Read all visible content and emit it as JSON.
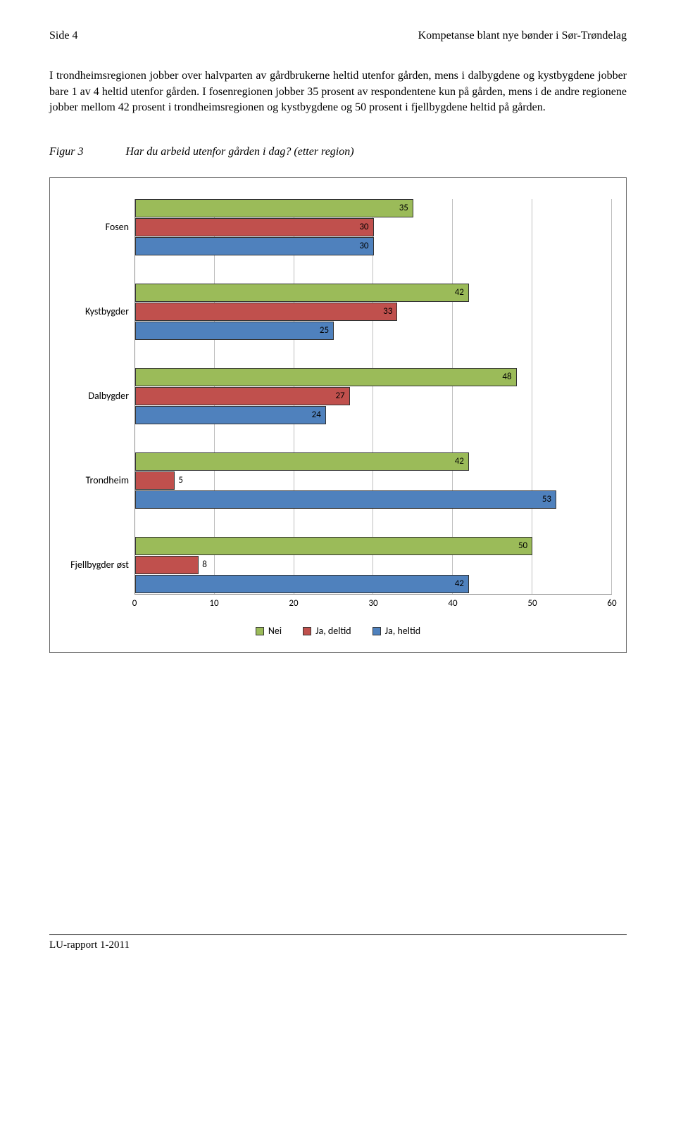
{
  "header": {
    "left": "Side 4",
    "right": "Kompetanse blant nye bønder i Sør-Trøndelag"
  },
  "body_text": "I trondheimsregionen jobber over halvparten av gårdbrukerne heltid utenfor gården, mens i dalbygdene og kystbygdene jobber bare 1 av 4 heltid utenfor gården. I fosenregionen jobber 35 prosent av respondentene kun på gården, mens i de andre regionene jobber mellom 42 prosent i trondheimsregionen og kystbygdene og 50 prosent i fjellbygdene heltid på gården.",
  "figure": {
    "label": "Figur 3",
    "title": "Har du arbeid utenfor gården i dag? (etter region)"
  },
  "chart": {
    "type": "bar-horizontal-grouped",
    "x_max": 60,
    "x_ticks": [
      0,
      10,
      20,
      30,
      40,
      50,
      60
    ],
    "grid_color": "#bfbfbf",
    "axis_color": "#888888",
    "background_color": "#ffffff",
    "bar_border_color": "#333333",
    "categories": [
      "Fosen",
      "Kystbygder",
      "Dalbygder",
      "Trondheim",
      "Fjellbygder øst"
    ],
    "series": [
      {
        "name": "Nei",
        "color": "#9bbb59"
      },
      {
        "name": "Ja, deltid",
        "color": "#c0504d"
      },
      {
        "name": "Ja, heltid",
        "color": "#4f81bd"
      }
    ],
    "data": {
      "Fosen": {
        "Nei": 35,
        "Ja, deltid": 30,
        "Ja, heltid": 30
      },
      "Kystbygder": {
        "Nei": 42,
        "Ja, deltid": 33,
        "Ja, heltid": 25
      },
      "Dalbygder": {
        "Nei": 48,
        "Ja, deltid": 27,
        "Ja, heltid": 24
      },
      "Trondheim": {
        "Nei": 42,
        "Ja, deltid": 5,
        "Ja, heltid": 53
      },
      "Fjellbygder øst": {
        "Nei": 50,
        "Ja, deltid": 8,
        "Ja, heltid": 42
      }
    },
    "label_fontsize": 13,
    "tick_fontsize": 13,
    "legend_fontsize": 14
  },
  "footer": "LU-rapport  1-2011"
}
